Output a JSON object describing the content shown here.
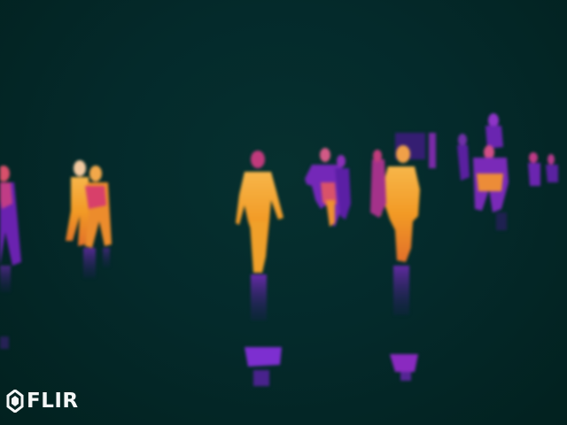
{
  "image": {
    "palette": {
      "background": "#03272a",
      "cold_body": "#5a1ea8",
      "warm_body": "#d8406a",
      "hot_body": "#f5a21a",
      "hottest": "#ffe9b0"
    },
    "logo": {
      "text": "FLIR",
      "icon": "flir-logo-icon"
    }
  }
}
